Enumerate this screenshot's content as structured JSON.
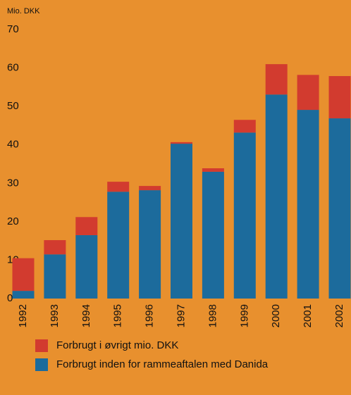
{
  "chart_data": {
    "type": "stacked_bar",
    "y_label": "Mio. DKK",
    "categories": [
      "1992",
      "1993",
      "1994",
      "1995",
      "1996",
      "1997",
      "1998",
      "1999",
      "2000",
      "2001",
      "2002"
    ],
    "series": [
      {
        "name": "Forbrugt i øvrigt mio. DKK",
        "color": "#d23b2f",
        "values": [
          8.5,
          3.7,
          4.7,
          2.6,
          1.1,
          0.4,
          0.9,
          3.3,
          7.9,
          9.1,
          11
        ]
      },
      {
        "name": "Forbrugt inden for rammeaftalen med Danida",
        "color": "#1c6b9c",
        "values": [
          2,
          11.5,
          16.5,
          27.8,
          28.2,
          40.3,
          33,
          43.2,
          53.1,
          49.1,
          46.9
        ]
      }
    ],
    "ylim": [
      0,
      70
    ],
    "yticks": [
      0,
      10,
      20,
      30,
      40,
      50,
      60,
      70
    ],
    "grid": false
  }
}
